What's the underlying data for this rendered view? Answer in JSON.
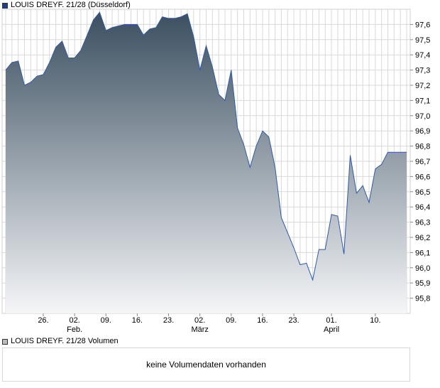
{
  "price_legend": {
    "label": "LOUIS DREYF. 21/28 (Düsseldorf)",
    "color": "#1f3e8c"
  },
  "volume_legend": {
    "label": "LOUIS DREYF. 21/28 Volumen",
    "color": "#bcbcbc"
  },
  "volume_panel": {
    "message": "keine Volumendaten vorhanden"
  },
  "colors": {
    "line": "#2f5aa8",
    "fill_top": "#3b4f60",
    "fill_bottom": "#f5f6f8",
    "grid": "#d9d9d9"
  },
  "chart_data": {
    "type": "area",
    "title": "LOUIS DREYF. 21/28 (Düsseldorf)",
    "ylim": [
      95.7,
      97.7
    ],
    "grid": true,
    "y_ticks": [
      "95,8",
      "95,9",
      "96,0",
      "96,1",
      "96,2",
      "96,3",
      "96,4",
      "96,5",
      "96,6",
      "96,7",
      "96,8",
      "96,9",
      "97,0",
      "97,1",
      "97,2",
      "97,3",
      "97,4",
      "97,5",
      "97,6"
    ],
    "x_ticks": [
      {
        "label": "26.",
        "sub": "",
        "idx": 6
      },
      {
        "label": "02.",
        "sub": "Feb.",
        "idx": 11
      },
      {
        "label": "09.",
        "sub": "",
        "idx": 16
      },
      {
        "label": "16.",
        "sub": "",
        "idx": 21
      },
      {
        "label": "23.",
        "sub": "",
        "idx": 26
      },
      {
        "label": "02.",
        "sub": "März",
        "idx": 31
      },
      {
        "label": "09.",
        "sub": "",
        "idx": 36
      },
      {
        "label": "16.",
        "sub": "",
        "idx": 41
      },
      {
        "label": "23.",
        "sub": "",
        "idx": 46
      },
      {
        "label": "01.",
        "sub": "April",
        "idx": 52
      },
      {
        "label": "10.",
        "sub": "",
        "idx": 59
      }
    ],
    "n_slots": 65,
    "series": [
      {
        "idx": [
          0,
          1,
          2,
          3,
          4,
          5,
          6,
          7,
          8,
          9,
          10,
          11,
          12,
          13,
          14,
          15,
          16,
          17,
          18,
          19,
          20,
          21,
          22,
          23,
          24,
          25,
          26,
          27,
          28,
          29,
          30,
          31,
          32,
          33,
          34,
          35,
          36,
          37,
          38,
          39,
          40,
          41,
          42,
          43,
          44,
          45,
          46,
          47,
          48,
          49,
          50,
          51,
          52,
          53,
          54,
          55,
          56,
          57,
          58,
          59,
          60,
          61,
          62,
          63,
          64
        ],
        "values": [
          97.3,
          97.35,
          97.36,
          97.2,
          97.22,
          97.26,
          97.27,
          97.35,
          97.45,
          97.49,
          97.38,
          97.38,
          97.43,
          97.53,
          97.63,
          97.68,
          97.56,
          97.58,
          97.59,
          97.6,
          97.6,
          97.6,
          97.53,
          97.57,
          97.58,
          97.65,
          97.64,
          97.64,
          97.65,
          97.67,
          97.52,
          97.3,
          97.46,
          97.32,
          97.14,
          97.1,
          97.3,
          96.92,
          96.81,
          96.66,
          96.8,
          96.9,
          96.86,
          96.66,
          96.33,
          96.23,
          96.13,
          96.02,
          96.03,
          95.92,
          96.12,
          96.12,
          96.35,
          96.34,
          96.09,
          96.74,
          96.49,
          96.54,
          96.43,
          96.65,
          96.68,
          96.76,
          96.76,
          96.76,
          96.76
        ]
      }
    ]
  }
}
